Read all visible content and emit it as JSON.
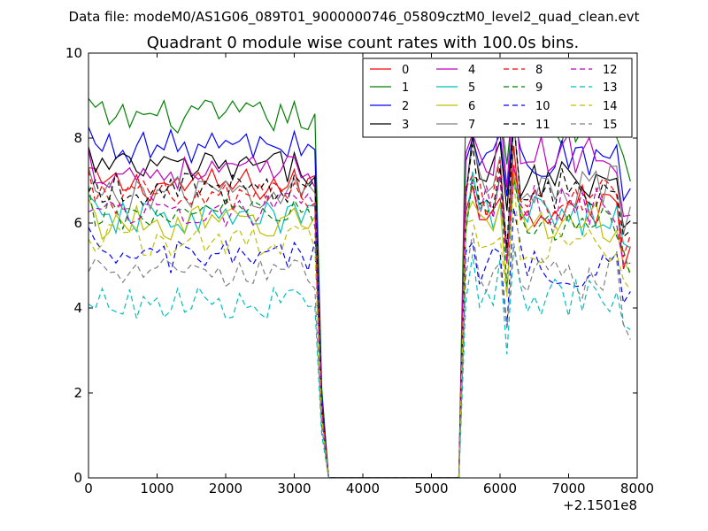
{
  "chart_data": {
    "type": "line",
    "suptitle": "Data file: modeM0/AS1G06_089T01_9000000746_05809cztM0_level2_quad_clean.evt",
    "title": "Quadrant 0 module wise count rates with 100.0s bins.",
    "xlabel": "",
    "ylabel": "",
    "x_offset_label": "+2.1501e8",
    "xlim": [
      0,
      8000
    ],
    "ylim": [
      0,
      10
    ],
    "xticks": [
      0,
      1000,
      2000,
      3000,
      4000,
      5000,
      6000,
      7000,
      8000
    ],
    "xtick_labels": [
      "0",
      "1000",
      "2000",
      "3000",
      "4000",
      "5000",
      "6000",
      "7000",
      "8000"
    ],
    "yticks": [
      0,
      2,
      4,
      6,
      8,
      10
    ],
    "ytick_labels": [
      "0",
      "2",
      "4",
      "6",
      "8",
      "10"
    ],
    "grid": false,
    "legend_position": "top-right",
    "legend_columns": 4,
    "bin_width": 100,
    "x_start": 0,
    "active_segments": [
      [
        0,
        3300
      ],
      [
        5500,
        7900
      ]
    ],
    "fall_bins": [
      3400,
      3500
    ],
    "rise_bin": 5400,
    "series": [
      {
        "name": "0",
        "color": "#ff0000",
        "dash": "solid",
        "seg1_level": 6.9,
        "seg2_level": 6.4
      },
      {
        "name": "1",
        "color": "#008000",
        "dash": "solid",
        "seg1_level": 8.5,
        "seg2_level": 8.3
      },
      {
        "name": "2",
        "color": "#0000ff",
        "dash": "solid",
        "seg1_level": 7.8,
        "seg2_level": 7.5
      },
      {
        "name": "3",
        "color": "#000000",
        "dash": "solid",
        "seg1_level": 7.3,
        "seg2_level": 7.1
      },
      {
        "name": "4",
        "color": "#bf00bf",
        "dash": "solid",
        "seg1_level": 7.2,
        "seg2_level": 7.6
      },
      {
        "name": "5",
        "color": "#00bfbf",
        "dash": "solid",
        "seg1_level": 6.1,
        "seg2_level": 6.2
      },
      {
        "name": "6",
        "color": "#bfbf00",
        "dash": "solid",
        "seg1_level": 6.0,
        "seg2_level": 6.0
      },
      {
        "name": "7",
        "color": "#808080",
        "dash": "solid",
        "seg1_level": 6.7,
        "seg2_level": 6.9
      },
      {
        "name": "8",
        "color": "#ff0000",
        "dash": "dashed",
        "seg1_level": 6.6,
        "seg2_level": 6.6
      },
      {
        "name": "9",
        "color": "#008000",
        "dash": "dashed",
        "seg1_level": 6.2,
        "seg2_level": 6.0
      },
      {
        "name": "10",
        "color": "#0000ff",
        "dash": "dashed",
        "seg1_level": 5.2,
        "seg2_level": 5.0
      },
      {
        "name": "11",
        "color": "#000000",
        "dash": "dashed",
        "seg1_level": 6.8,
        "seg2_level": 6.8
      },
      {
        "name": "12",
        "color": "#bf00bf",
        "dash": "dashed",
        "seg1_level": 6.3,
        "seg2_level": 6.4
      },
      {
        "name": "13",
        "color": "#00bfbf",
        "dash": "dashed",
        "seg1_level": 4.1,
        "seg2_level": 4.2
      },
      {
        "name": "14",
        "color": "#bfbf00",
        "dash": "dashed",
        "seg1_level": 5.6,
        "seg2_level": 5.5
      },
      {
        "name": "15",
        "color": "#808080",
        "dash": "dashed",
        "seg1_level": 4.8,
        "seg2_level": 4.7
      }
    ]
  }
}
